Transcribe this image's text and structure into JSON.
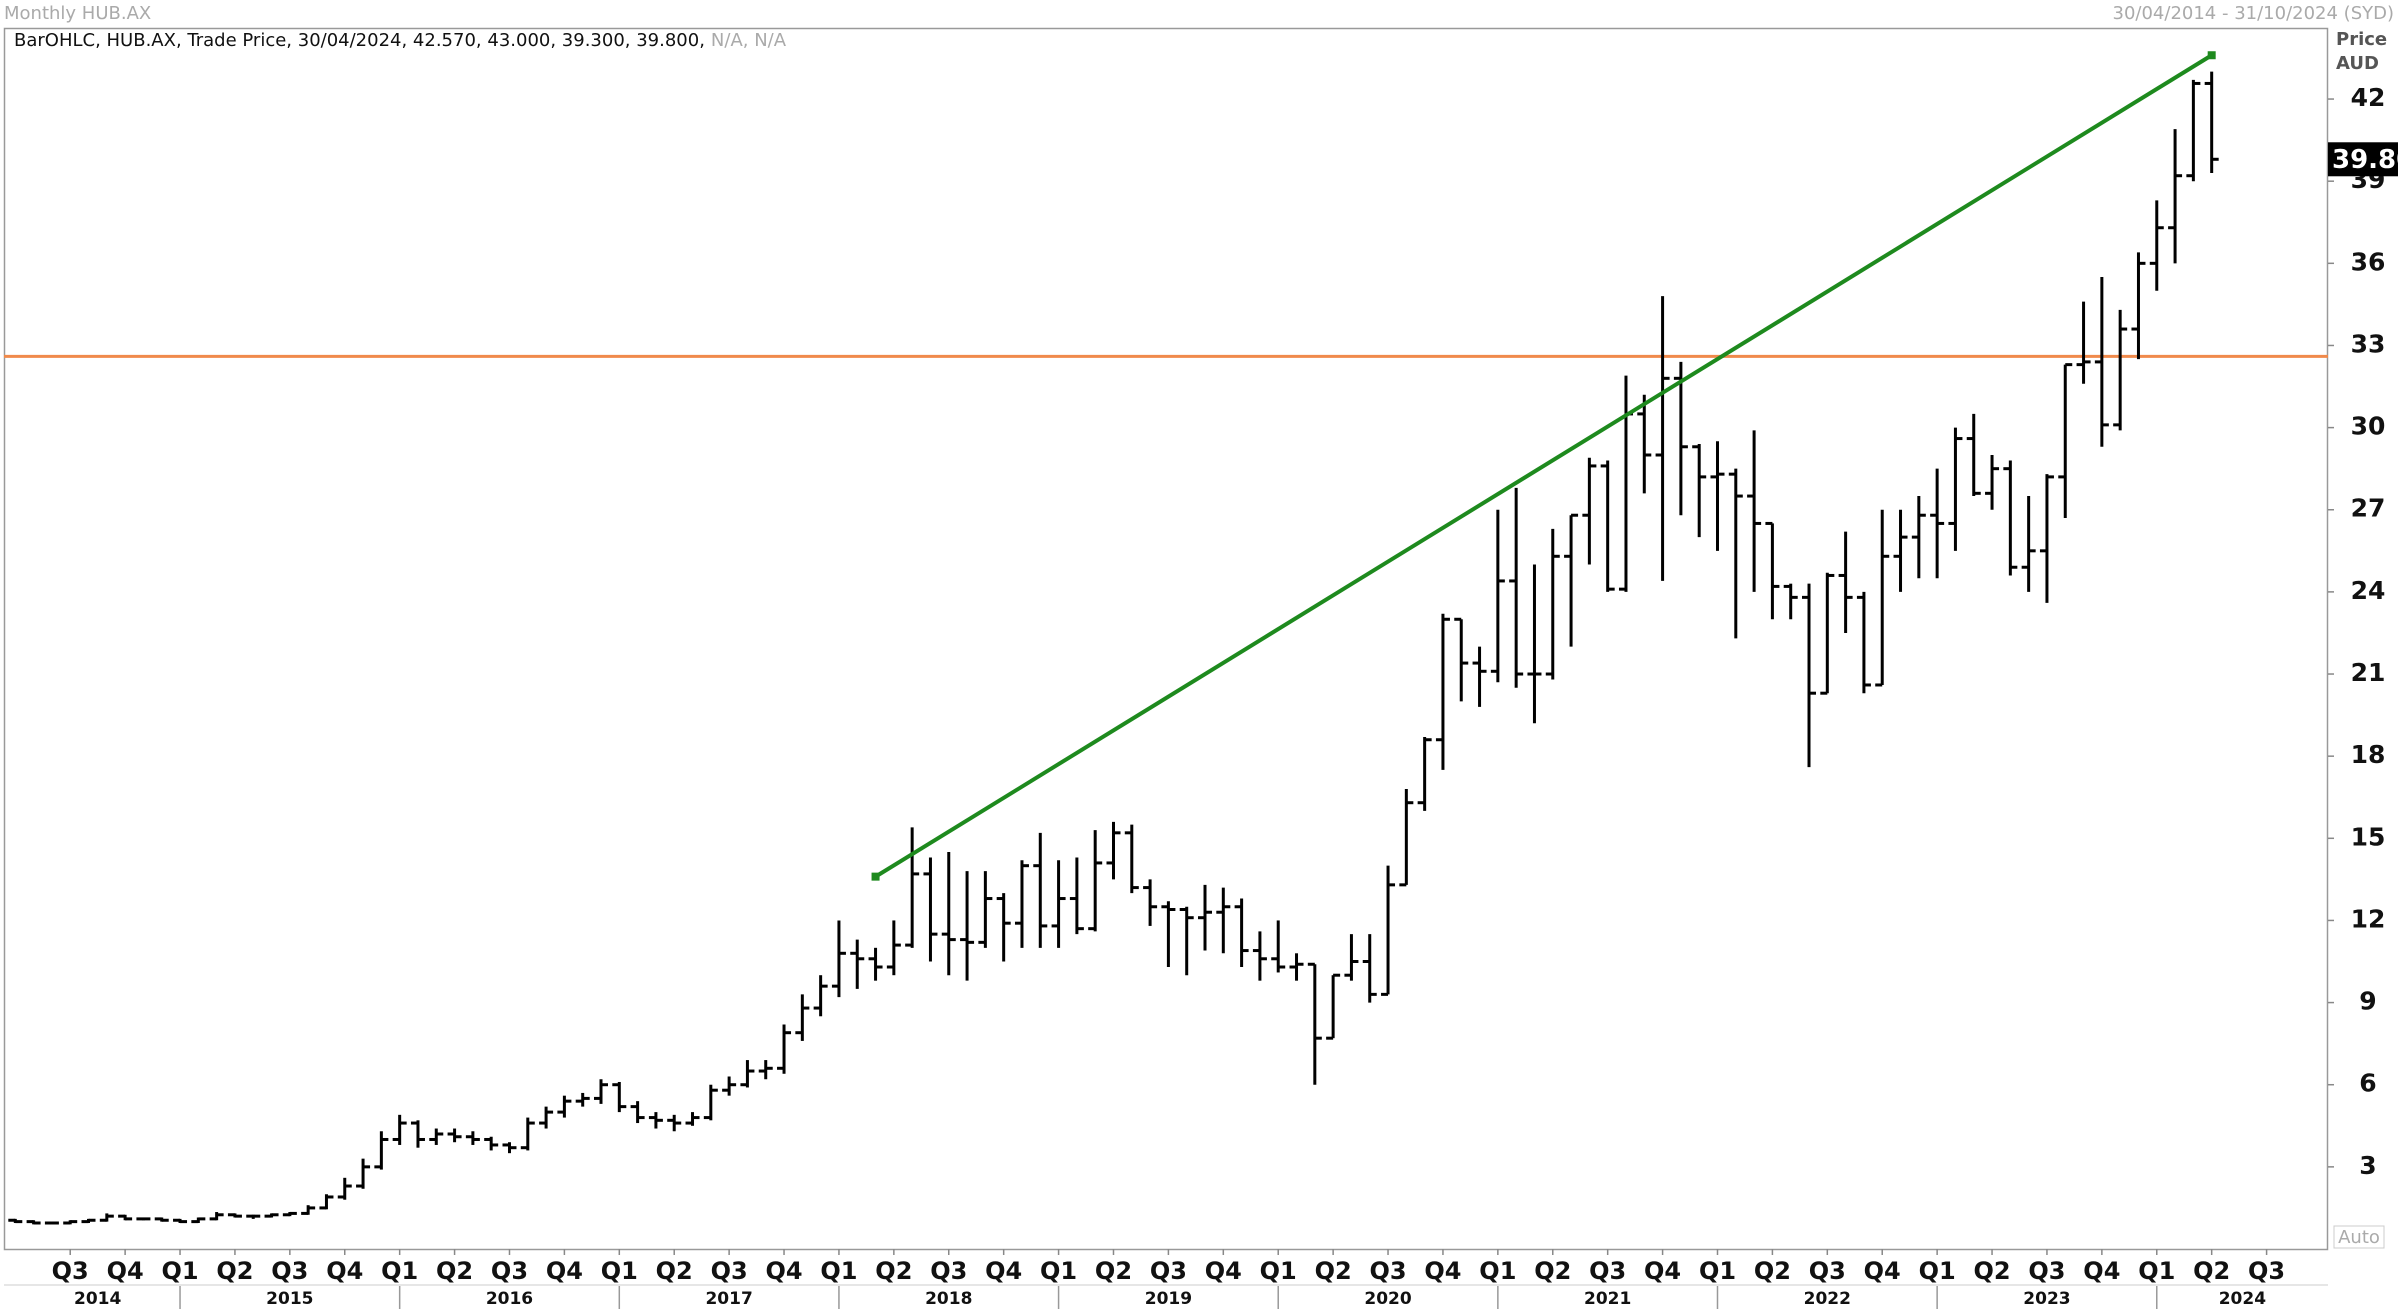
{
  "chart_data": {
    "type": "ohlc",
    "title": "Monthly HUB.AX",
    "date_range": "30/04/2014 - 31/10/2024 (SYD)",
    "legend": "BarOHLC, HUB.AX, Trade Price, 30/04/2024, 42.570, 43.000, 39.300, 39.800,",
    "legend_na": "N/A, N/A",
    "ylabel": "Price",
    "yunit": "AUD",
    "auto_label": "Auto",
    "color": "#000000",
    "ylim": [
      0,
      44.5
    ],
    "yticks": [
      3,
      6,
      9,
      12,
      15,
      18,
      21,
      24,
      27,
      30,
      33,
      36,
      39,
      42
    ],
    "xlim": [
      "2014-04",
      "2024-10"
    ],
    "x": [
      "2014-04",
      "2014-05",
      "2014-06",
      "2014-07",
      "2014-08",
      "2014-09",
      "2014-10",
      "2014-11",
      "2014-12",
      "2015-01",
      "2015-02",
      "2015-03",
      "2015-04",
      "2015-05",
      "2015-06",
      "2015-07",
      "2015-08",
      "2015-09",
      "2015-10",
      "2015-11",
      "2015-12",
      "2016-01",
      "2016-02",
      "2016-03",
      "2016-04",
      "2016-05",
      "2016-06",
      "2016-07",
      "2016-08",
      "2016-09",
      "2016-10",
      "2016-11",
      "2016-12",
      "2017-01",
      "2017-02",
      "2017-03",
      "2017-04",
      "2017-05",
      "2017-06",
      "2017-07",
      "2017-08",
      "2017-09",
      "2017-10",
      "2017-11",
      "2017-12",
      "2018-01",
      "2018-02",
      "2018-03",
      "2018-04",
      "2018-05",
      "2018-06",
      "2018-07",
      "2018-08",
      "2018-09",
      "2018-10",
      "2018-11",
      "2018-12",
      "2019-01",
      "2019-02",
      "2019-03",
      "2019-04",
      "2019-05",
      "2019-06",
      "2019-07",
      "2019-08",
      "2019-09",
      "2019-10",
      "2019-11",
      "2019-12",
      "2020-01",
      "2020-02",
      "2020-03",
      "2020-04",
      "2020-05",
      "2020-06",
      "2020-07",
      "2020-08",
      "2020-09",
      "2020-10",
      "2020-11",
      "2020-12",
      "2021-01",
      "2021-02",
      "2021-03",
      "2021-04",
      "2021-05",
      "2021-06",
      "2021-07",
      "2021-08",
      "2021-09",
      "2021-10",
      "2021-11",
      "2021-12",
      "2022-01",
      "2022-02",
      "2022-03",
      "2022-04",
      "2022-05",
      "2022-06",
      "2022-07",
      "2022-08",
      "2022-09",
      "2022-10",
      "2022-11",
      "2022-12",
      "2023-01",
      "2023-02",
      "2023-03",
      "2023-04",
      "2023-05",
      "2023-06",
      "2023-07",
      "2023-08",
      "2023-09",
      "2023-10",
      "2023-11",
      "2023-12",
      "2024-01",
      "2024-02",
      "2024-03",
      "2024-04"
    ],
    "open": [
      1.05,
      1.0,
      0.95,
      0.95,
      1.0,
      1.05,
      1.2,
      1.1,
      1.1,
      1.05,
      1.0,
      1.1,
      1.25,
      1.2,
      1.2,
      1.25,
      1.3,
      1.5,
      1.9,
      2.3,
      3.0,
      4.0,
      4.6,
      4.0,
      4.2,
      4.1,
      4.0,
      3.8,
      3.7,
      4.6,
      5.0,
      5.4,
      5.5,
      6.0,
      5.2,
      4.8,
      4.7,
      4.6,
      4.8,
      5.8,
      6.0,
      6.5,
      6.6,
      7.9,
      8.8,
      9.6,
      10.8,
      10.6,
      10.3,
      11.1,
      13.7,
      11.5,
      11.3,
      11.2,
      12.8,
      11.9,
      14.0,
      11.8,
      12.8,
      11.7,
      14.1,
      15.2,
      13.2,
      12.5,
      12.4,
      12.1,
      12.3,
      12.5,
      10.9,
      10.6,
      10.3,
      10.4,
      7.7,
      10.0,
      10.5,
      9.3,
      13.3,
      16.3,
      18.6,
      23.0,
      21.4,
      21.1,
      24.4,
      21.0,
      21.0,
      25.3,
      26.8,
      28.6,
      24.1,
      30.5,
      29.0,
      31.8,
      29.3,
      28.2,
      28.3,
      27.5,
      26.5,
      24.2,
      23.8,
      20.3,
      24.6,
      23.8,
      20.6,
      25.3,
      26.0,
      26.8,
      26.5,
      29.6,
      27.6,
      28.5,
      24.9,
      25.5,
      28.2,
      32.3,
      32.4,
      30.1,
      33.6,
      36.0,
      37.3,
      39.2,
      42.57
    ],
    "high": [
      1.1,
      1.05,
      1.0,
      1.05,
      1.1,
      1.3,
      1.25,
      1.15,
      1.15,
      1.1,
      1.15,
      1.35,
      1.3,
      1.25,
      1.3,
      1.35,
      1.6,
      2.0,
      2.6,
      3.3,
      4.3,
      4.9,
      4.7,
      4.4,
      4.4,
      4.3,
      4.1,
      3.9,
      4.8,
      5.2,
      5.6,
      5.7,
      6.2,
      6.1,
      5.4,
      5.0,
      4.9,
      5.0,
      6.0,
      6.3,
      6.9,
      6.9,
      8.2,
      9.3,
      10.0,
      12.0,
      11.3,
      11.0,
      12.0,
      15.4,
      14.3,
      14.5,
      13.8,
      13.8,
      13.0,
      14.2,
      15.2,
      14.2,
      14.3,
      15.3,
      15.6,
      15.5,
      13.5,
      12.7,
      12.5,
      13.3,
      13.2,
      12.8,
      11.6,
      12.0,
      10.8,
      10.4,
      10.0,
      11.5,
      11.5,
      14.0,
      16.8,
      18.7,
      23.2,
      23.0,
      22.0,
      27.0,
      27.8,
      25.0,
      26.3,
      26.8,
      28.9,
      28.8,
      31.9,
      31.2,
      34.8,
      32.4,
      29.4,
      29.5,
      28.5,
      29.9,
      26.5,
      24.3,
      24.3,
      24.7,
      26.2,
      24.0,
      27.0,
      27.0,
      27.5,
      28.5,
      30.0,
      30.5,
      29.0,
      28.8,
      27.5,
      28.3,
      32.3,
      34.6,
      35.5,
      34.3,
      36.4,
      38.3,
      40.9,
      42.7,
      43.0
    ],
    "low": [
      0.95,
      0.9,
      0.9,
      0.9,
      0.95,
      1.0,
      1.05,
      1.05,
      1.0,
      0.95,
      0.95,
      1.05,
      1.15,
      1.1,
      1.15,
      1.2,
      1.25,
      1.45,
      1.8,
      2.2,
      2.9,
      3.8,
      3.7,
      3.8,
      3.9,
      3.8,
      3.6,
      3.5,
      3.6,
      4.4,
      4.8,
      5.2,
      5.3,
      5.0,
      4.6,
      4.4,
      4.3,
      4.5,
      4.7,
      5.6,
      5.9,
      6.2,
      6.4,
      7.6,
      8.5,
      9.2,
      9.5,
      9.8,
      10.0,
      11.0,
      10.5,
      10.0,
      9.8,
      11.0,
      10.5,
      11.0,
      11.0,
      11.0,
      11.5,
      11.6,
      13.5,
      13.0,
      11.8,
      10.3,
      10.0,
      10.9,
      10.8,
      10.3,
      9.8,
      10.1,
      9.8,
      6.0,
      7.7,
      9.8,
      9.0,
      9.3,
      13.3,
      16.0,
      17.5,
      20.0,
      19.8,
      20.7,
      20.5,
      19.2,
      20.8,
      22.0,
      25.0,
      24.0,
      24.0,
      27.6,
      24.4,
      26.8,
      26.0,
      25.5,
      22.3,
      24.0,
      23.0,
      23.0,
      17.6,
      20.3,
      22.5,
      20.3,
      20.6,
      24.0,
      24.5,
      24.5,
      25.5,
      27.5,
      27.0,
      24.6,
      24.0,
      23.6,
      26.7,
      31.6,
      29.3,
      29.9,
      32.5,
      35.0,
      36.0,
      39.0,
      39.3
    ],
    "close": [
      1.0,
      0.95,
      0.95,
      1.0,
      1.05,
      1.2,
      1.1,
      1.1,
      1.05,
      1.0,
      1.1,
      1.25,
      1.2,
      1.2,
      1.25,
      1.3,
      1.5,
      1.9,
      2.3,
      3.0,
      4.0,
      4.6,
      4.0,
      4.2,
      4.1,
      4.0,
      3.8,
      3.7,
      4.6,
      5.0,
      5.4,
      5.5,
      6.0,
      5.2,
      4.8,
      4.7,
      4.6,
      4.8,
      5.8,
      6.0,
      6.5,
      6.6,
      7.9,
      8.8,
      9.6,
      10.8,
      10.6,
      10.3,
      11.1,
      13.7,
      11.5,
      11.3,
      11.2,
      12.8,
      11.9,
      14.0,
      11.8,
      12.8,
      11.7,
      14.1,
      15.2,
      13.2,
      12.5,
      12.4,
      12.1,
      12.3,
      12.5,
      10.9,
      10.6,
      10.3,
      10.4,
      7.7,
      10.0,
      10.5,
      9.3,
      13.3,
      16.3,
      18.6,
      23.0,
      21.4,
      21.1,
      24.4,
      21.0,
      21.0,
      25.3,
      26.8,
      28.6,
      24.1,
      30.5,
      29.0,
      31.8,
      29.3,
      28.2,
      28.3,
      27.5,
      26.5,
      24.2,
      23.8,
      20.3,
      24.6,
      23.8,
      20.6,
      25.3,
      26.0,
      26.8,
      26.5,
      29.6,
      27.6,
      28.5,
      24.9,
      25.5,
      28.2,
      32.3,
      32.4,
      30.1,
      33.6,
      36.0,
      37.3,
      39.2,
      42.57,
      39.8
    ],
    "last_close_label": "39.80",
    "hline": {
      "value": 32.6,
      "color": "#f08a4b"
    },
    "trendline": {
      "x": [
        "2018-03",
        "2024-04"
      ],
      "y": [
        13.6,
        43.6
      ],
      "color": "#1e8a1e"
    },
    "quarter_ticks": [
      {
        "value": "2014-07",
        "label": "Q3"
      },
      {
        "value": "2014-10",
        "label": "Q4"
      },
      {
        "value": "2015-01",
        "label": "Q1"
      },
      {
        "value": "2015-04",
        "label": "Q2"
      },
      {
        "value": "2015-07",
        "label": "Q3"
      },
      {
        "value": "2015-10",
        "label": "Q4"
      },
      {
        "value": "2016-01",
        "label": "Q1"
      },
      {
        "value": "2016-04",
        "label": "Q2"
      },
      {
        "value": "2016-07",
        "label": "Q3"
      },
      {
        "value": "2016-10",
        "label": "Q4"
      },
      {
        "value": "2017-01",
        "label": "Q1"
      },
      {
        "value": "2017-04",
        "label": "Q2"
      },
      {
        "value": "2017-07",
        "label": "Q3"
      },
      {
        "value": "2017-10",
        "label": "Q4"
      },
      {
        "value": "2018-01",
        "label": "Q1"
      },
      {
        "value": "2018-04",
        "label": "Q2"
      },
      {
        "value": "2018-07",
        "label": "Q3"
      },
      {
        "value": "2018-10",
        "label": "Q4"
      },
      {
        "value": "2019-01",
        "label": "Q1"
      },
      {
        "value": "2019-04",
        "label": "Q2"
      },
      {
        "value": "2019-07",
        "label": "Q3"
      },
      {
        "value": "2019-10",
        "label": "Q4"
      },
      {
        "value": "2020-01",
        "label": "Q1"
      },
      {
        "value": "2020-04",
        "label": "Q2"
      },
      {
        "value": "2020-07",
        "label": "Q3"
      },
      {
        "value": "2020-10",
        "label": "Q4"
      },
      {
        "value": "2021-01",
        "label": "Q1"
      },
      {
        "value": "2021-04",
        "label": "Q2"
      },
      {
        "value": "2021-07",
        "label": "Q3"
      },
      {
        "value": "2021-10",
        "label": "Q4"
      },
      {
        "value": "2022-01",
        "label": "Q1"
      },
      {
        "value": "2022-04",
        "label": "Q2"
      },
      {
        "value": "2022-07",
        "label": "Q3"
      },
      {
        "value": "2022-10",
        "label": "Q4"
      },
      {
        "value": "2023-01",
        "label": "Q1"
      },
      {
        "value": "2023-04",
        "label": "Q2"
      },
      {
        "value": "2023-07",
        "label": "Q3"
      },
      {
        "value": "2023-10",
        "label": "Q4"
      },
      {
        "value": "2024-01",
        "label": "Q1"
      },
      {
        "value": "2024-04",
        "label": "Q2"
      },
      {
        "value": "2024-07",
        "label": "Q3"
      }
    ],
    "years": [
      "2014",
      "2015",
      "2016",
      "2017",
      "2018",
      "2019",
      "2020",
      "2021",
      "2022",
      "2023",
      "2024"
    ]
  }
}
